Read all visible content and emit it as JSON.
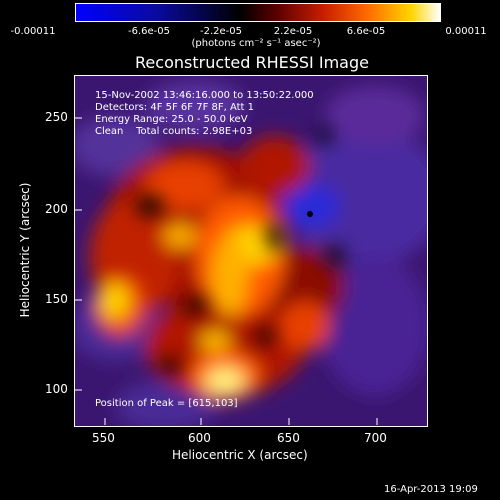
{
  "colorbar": {
    "tick_labels": [
      "-0.00011",
      "-6.6e-05",
      "-2.2e-05",
      "2.2e-05",
      "6.6e-05",
      "0.00011"
    ],
    "units_label": "(photons cm⁻² s⁻¹ asec⁻²)",
    "colormap": "RHESSI blue-black-red-yellow-white"
  },
  "title": "Reconstructed RHESSI Image",
  "info": {
    "time_range": "15-Nov-2002 13:46:16.000 to 13:50:22.000",
    "detectors": "Detectors: 4F 5F 6F 7F 8F, Att 1",
    "energy_range": "Energy Range: 25.0 - 50.0 keV",
    "method": "Clean",
    "total_counts": "Total counts: 2.98E+03",
    "peak_position": "Position of Peak = [615,103]"
  },
  "axes": {
    "xlabel": "Heliocentric X (arcsec)",
    "ylabel": "Heliocentric Y (arcsec)",
    "xticks": [
      "550",
      "600",
      "650",
      "700"
    ],
    "yticks": [
      "100",
      "150",
      "200",
      "250"
    ],
    "xrange": [
      530,
      722
    ],
    "yrange": [
      80,
      275
    ]
  },
  "timestamp": "16-Apr-2013 19:09"
}
